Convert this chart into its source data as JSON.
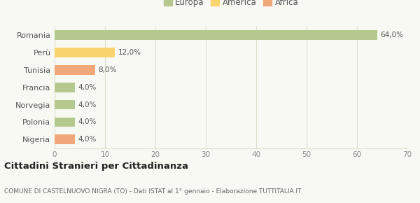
{
  "categories": [
    "Romania",
    "Perù",
    "Tunisia",
    "Francia",
    "Norvegia",
    "Polonia",
    "Nigeria"
  ],
  "values": [
    64.0,
    12.0,
    8.0,
    4.0,
    4.0,
    4.0,
    4.0
  ],
  "colors": [
    "#b5c98e",
    "#f9d46e",
    "#f0a87a",
    "#b5c98e",
    "#b5c98e",
    "#b5c98e",
    "#f0a87a"
  ],
  "labels": [
    "64,0%",
    "12,0%",
    "8,0%",
    "4,0%",
    "4,0%",
    "4,0%",
    "4,0%"
  ],
  "legend": [
    {
      "label": "Europa",
      "color": "#b5c98e"
    },
    {
      "label": "America",
      "color": "#f9d46e"
    },
    {
      "label": "Africa",
      "color": "#f0a87a"
    }
  ],
  "xlim": [
    0,
    70
  ],
  "xticks": [
    0,
    10,
    20,
    30,
    40,
    50,
    60,
    70
  ],
  "title": "Cittadini Stranieri per Cittadinanza",
  "subtitle": "COMUNE DI CASTELNUOVO NIGRA (TO) - Dati ISTAT al 1° gennaio - Elaborazione TUTTITALIA.IT",
  "bg_color": "#f9f9f4",
  "grid_color": "#ddddcc",
  "bar_height": 0.55
}
